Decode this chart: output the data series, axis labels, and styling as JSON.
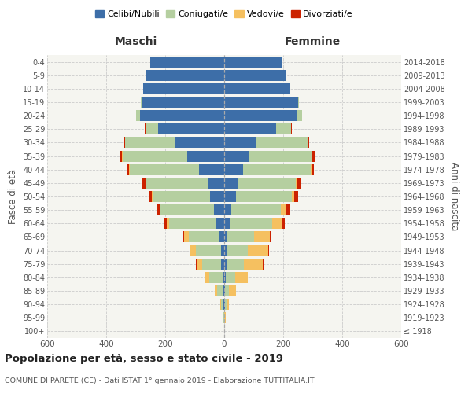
{
  "age_groups": [
    "100+",
    "95-99",
    "90-94",
    "85-89",
    "80-84",
    "75-79",
    "70-74",
    "65-69",
    "60-64",
    "55-59",
    "50-54",
    "45-49",
    "40-44",
    "35-39",
    "30-34",
    "25-29",
    "20-24",
    "15-19",
    "10-14",
    "5-9",
    "0-4"
  ],
  "birth_years": [
    "≤ 1918",
    "1919-1923",
    "1924-1928",
    "1929-1933",
    "1934-1938",
    "1939-1943",
    "1944-1948",
    "1949-1953",
    "1954-1958",
    "1959-1963",
    "1964-1968",
    "1969-1973",
    "1974-1978",
    "1979-1983",
    "1984-1988",
    "1989-1993",
    "1994-1998",
    "1999-2003",
    "2004-2008",
    "2009-2013",
    "2014-2018"
  ],
  "males": {
    "celibi": [
      0,
      0,
      2,
      3,
      5,
      10,
      12,
      15,
      28,
      35,
      48,
      55,
      85,
      125,
      165,
      225,
      285,
      280,
      275,
      265,
      250
    ],
    "coniugati": [
      0,
      2,
      8,
      20,
      45,
      65,
      85,
      105,
      160,
      180,
      195,
      210,
      235,
      220,
      170,
      42,
      14,
      4,
      0,
      0,
      0
    ],
    "vedovi": [
      0,
      0,
      3,
      8,
      15,
      18,
      18,
      15,
      8,
      4,
      2,
      2,
      2,
      2,
      1,
      0,
      0,
      0,
      0,
      0,
      0
    ],
    "divorziati": [
      0,
      0,
      0,
      0,
      0,
      2,
      3,
      5,
      8,
      10,
      10,
      10,
      8,
      8,
      5,
      2,
      0,
      0,
      0,
      0,
      0
    ]
  },
  "females": {
    "nubili": [
      0,
      0,
      2,
      2,
      4,
      8,
      8,
      10,
      20,
      25,
      40,
      45,
      65,
      85,
      110,
      175,
      245,
      250,
      225,
      210,
      195
    ],
    "coniugate": [
      0,
      1,
      5,
      14,
      32,
      58,
      72,
      92,
      142,
      168,
      188,
      198,
      228,
      212,
      172,
      52,
      18,
      4,
      0,
      0,
      0
    ],
    "vedove": [
      0,
      3,
      10,
      25,
      45,
      65,
      68,
      52,
      36,
      18,
      8,
      5,
      3,
      2,
      2,
      0,
      0,
      0,
      0,
      0,
      0
    ],
    "divorziate": [
      0,
      0,
      0,
      0,
      0,
      2,
      3,
      5,
      8,
      12,
      15,
      12,
      8,
      8,
      5,
      2,
      0,
      0,
      0,
      0,
      0
    ]
  },
  "colors": {
    "celibi": "#3d6ea8",
    "coniugati": "#b5cfa0",
    "vedovi": "#f5c060",
    "divorziati": "#cc2200"
  },
  "xlim": 600,
  "title": "Popolazione per età, sesso e stato civile - 2019",
  "subtitle": "COMUNE DI PARETE (CE) - Dati ISTAT 1° gennaio 2019 - Elaborazione TUTTITALIA.IT",
  "ylabel_left": "Fasce di età",
  "ylabel_right": "Anni di nascita",
  "xlabel_maschi": "Maschi",
  "xlabel_femmine": "Femmine",
  "legend_labels": [
    "Celibi/Nubili",
    "Coniugati/e",
    "Vedovi/e",
    "Divorziati/e"
  ],
  "bg_color": "#f5f5f0"
}
